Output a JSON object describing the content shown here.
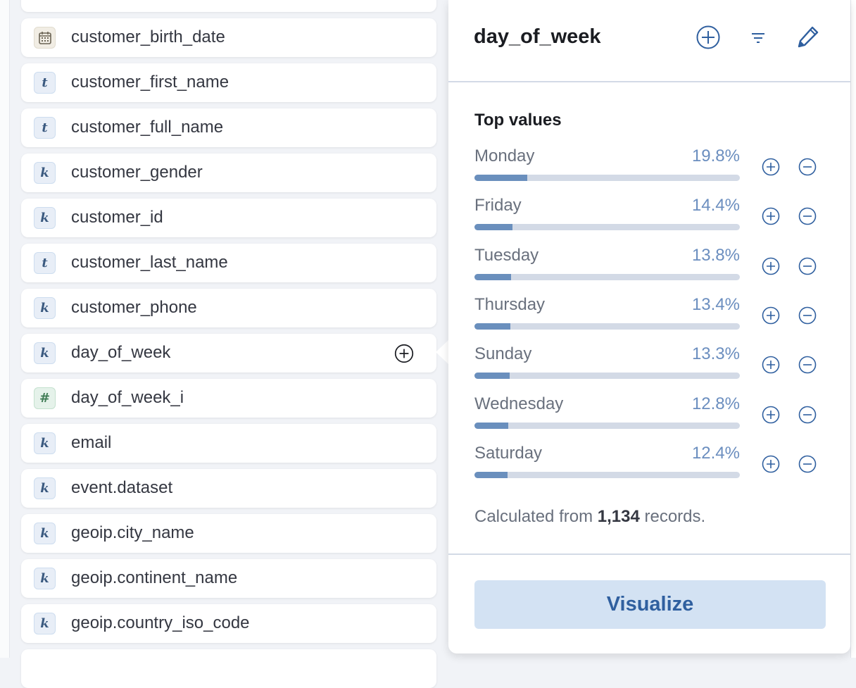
{
  "fields": [
    {
      "name": "customer_birth_date",
      "type": "date"
    },
    {
      "name": "customer_first_name",
      "type": "t"
    },
    {
      "name": "customer_full_name",
      "type": "t"
    },
    {
      "name": "customer_gender",
      "type": "k"
    },
    {
      "name": "customer_id",
      "type": "k"
    },
    {
      "name": "customer_last_name",
      "type": "t"
    },
    {
      "name": "customer_phone",
      "type": "k"
    },
    {
      "name": "day_of_week",
      "type": "k",
      "selected": true
    },
    {
      "name": "day_of_week_i",
      "type": "#"
    },
    {
      "name": "email",
      "type": "k"
    },
    {
      "name": "event.dataset",
      "type": "k"
    },
    {
      "name": "geoip.city_name",
      "type": "k"
    },
    {
      "name": "geoip.continent_name",
      "type": "k"
    },
    {
      "name": "geoip.country_iso_code",
      "type": "k"
    }
  ],
  "popover": {
    "title": "day_of_week",
    "icons": [
      "plus-circle-icon",
      "filter-icon",
      "pencil-icon"
    ],
    "top_values_heading": "Top values",
    "top_values": [
      {
        "label": "Monday",
        "percent": "19.8%",
        "value": 19.8
      },
      {
        "label": "Friday",
        "percent": "14.4%",
        "value": 14.4
      },
      {
        "label": "Tuesday",
        "percent": "13.8%",
        "value": 13.8
      },
      {
        "label": "Thursday",
        "percent": "13.4%",
        "value": 13.4
      },
      {
        "label": "Sunday",
        "percent": "13.3%",
        "value": 13.3
      },
      {
        "label": "Wednesday",
        "percent": "12.8%",
        "value": 12.8
      },
      {
        "label": "Saturday",
        "percent": "12.4%",
        "value": 12.4
      }
    ],
    "footer_prefix": "Calculated from ",
    "footer_count": "1,134",
    "footer_suffix": " records.",
    "visualize_label": "Visualize"
  },
  "colors": {
    "accent": "#2f5f9f",
    "bar_fill": "#6a8fbd",
    "bar_track": "#d3dae6",
    "button_bg": "#d3e2f3"
  }
}
